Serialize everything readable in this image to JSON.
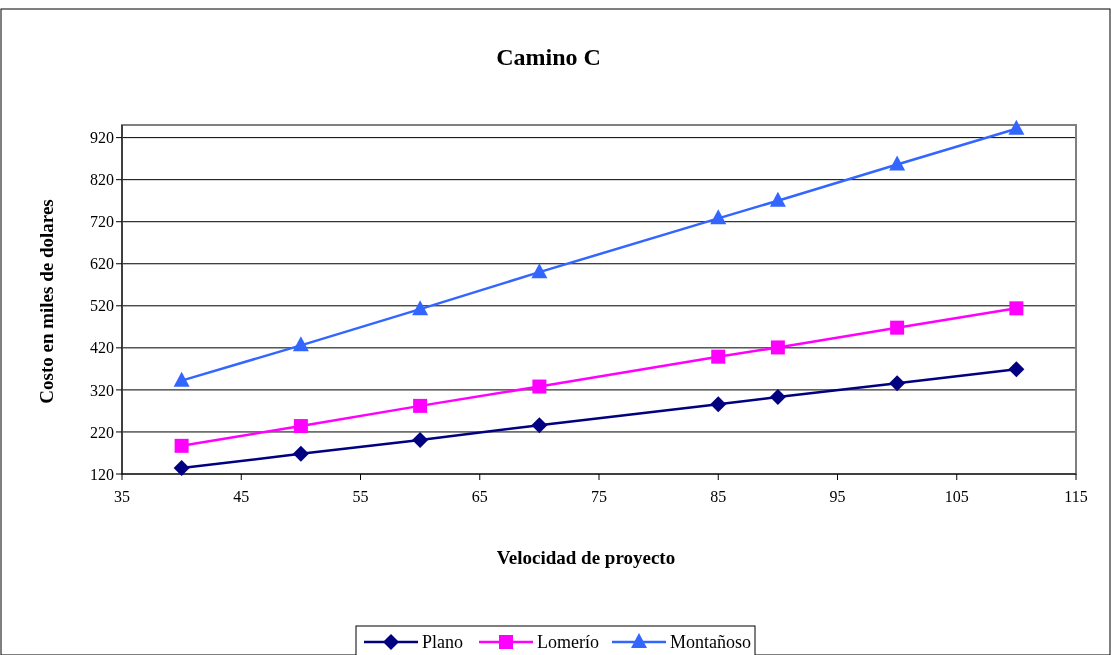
{
  "chart_data": {
    "type": "line",
    "title": "Camino C",
    "xlabel": "Velocidad de proyecto",
    "ylabel": "Costo en miles de dolares",
    "x": [
      40,
      50,
      60,
      70,
      85,
      90,
      100,
      110
    ],
    "series": [
      {
        "name": "Plano",
        "color": "#000080",
        "marker": "diamond",
        "values": [
          134,
          168,
          201,
          236,
          286,
          303,
          336,
          369
        ]
      },
      {
        "name": "Lomerío",
        "color": "#ff00ff",
        "marker": "square",
        "values": [
          187,
          234,
          282,
          328,
          399,
          421,
          468,
          514
        ]
      },
      {
        "name": "Montañoso",
        "color": "#3366ff",
        "marker": "triangle",
        "values": [
          342,
          426,
          512,
          600,
          728,
          770,
          856,
          941
        ]
      }
    ],
    "xlim": [
      35,
      115
    ],
    "xticks": [
      35,
      45,
      55,
      65,
      75,
      85,
      95,
      105,
      115
    ],
    "ylim": [
      120,
      950
    ],
    "yticks": [
      120,
      220,
      320,
      420,
      520,
      620,
      720,
      820,
      920
    ],
    "grid": "y",
    "legend": "bottom",
    "line_style": "solid"
  }
}
